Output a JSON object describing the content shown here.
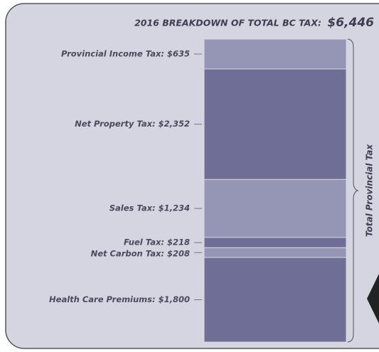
{
  "chart_data": {
    "type": "stacked-column",
    "title": "2016 BREAKDOWN OF TOTAL BC TAX:",
    "total": 6446,
    "total_label": "$6,446",
    "annotation": "Total Provincial Tax",
    "values": [
      635,
      2352,
      1234,
      218,
      208,
      1800
    ],
    "value_labels": [
      "Provincial Income Tax: $635",
      "Net Property Tax: $2,352",
      "Sales Tax: $1,234",
      "Fuel Tax: $218",
      "Net Carbon Tax: $208",
      "Health Care Premiums: $1,800"
    ],
    "colors": [
      "#9595b6",
      "#6e6e97",
      "#9595b6",
      "#6e6e97",
      "#9595b6",
      "#6e6e97"
    ]
  }
}
